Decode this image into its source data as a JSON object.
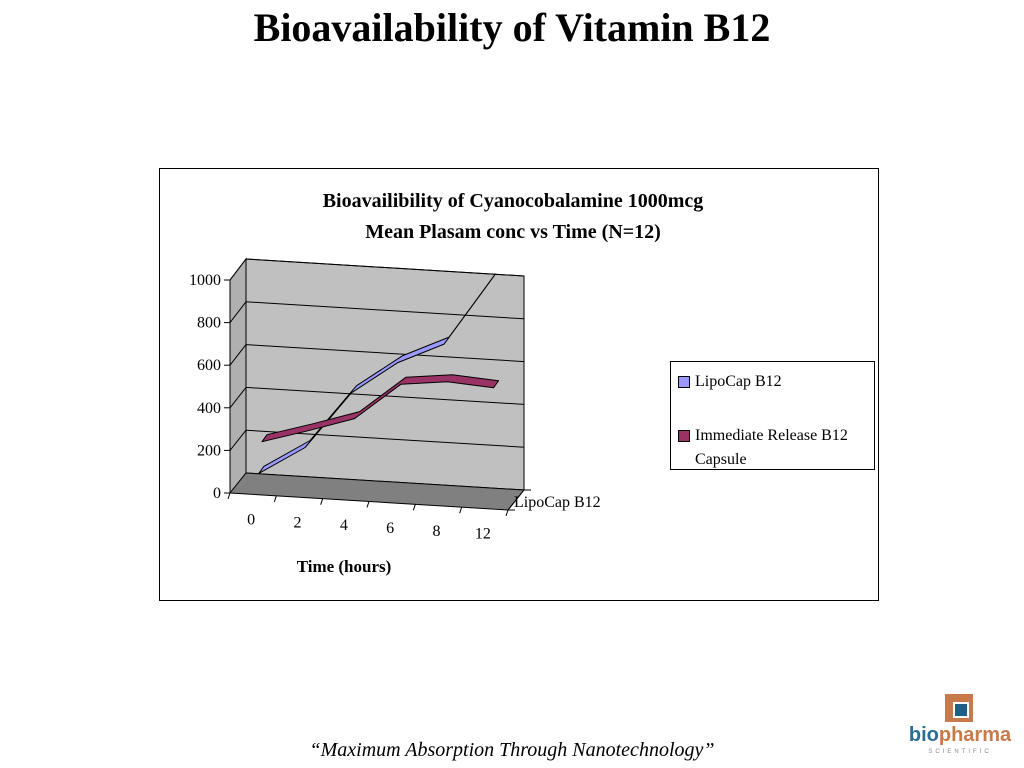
{
  "slide": {
    "title": "Bioavailability of Vitamin B12",
    "tagline": "“Maximum Absorption Through Nanotechnology”"
  },
  "logo": {
    "word_bio": "bio",
    "word_pharma": "pharma",
    "subtitle": "SCIENTIFIC"
  },
  "chart_data": {
    "type": "line",
    "style": "3d",
    "title": "Bioavailibility of Cyanocobalamine 1000mcg",
    "subtitle": "Mean Plasam conc vs Time (N=12)",
    "xlabel": "Time (hours)",
    "ylabel": "",
    "depth_axis_label": "LipoCap B12",
    "categories": [
      "0",
      "2",
      "4",
      "6",
      "8",
      "12"
    ],
    "yticks": [
      0,
      200,
      400,
      600,
      800,
      1000
    ],
    "ylim": [
      0,
      1000
    ],
    "grid": true,
    "legend_position": "right",
    "series": [
      {
        "name": "LipoCap B12",
        "values": [
          80,
          215,
          485,
          640,
          740,
          1050
        ],
        "color": "#9999ff"
      },
      {
        "name": "Immediate Release B12 Capsule",
        "values": [
          210,
          275,
          345,
          520,
          545,
          530
        ],
        "color": "#993366"
      }
    ],
    "colors": {
      "wall": "#c0c0c0",
      "floor": "#808080",
      "side_wall": "#b0b0b0"
    }
  }
}
